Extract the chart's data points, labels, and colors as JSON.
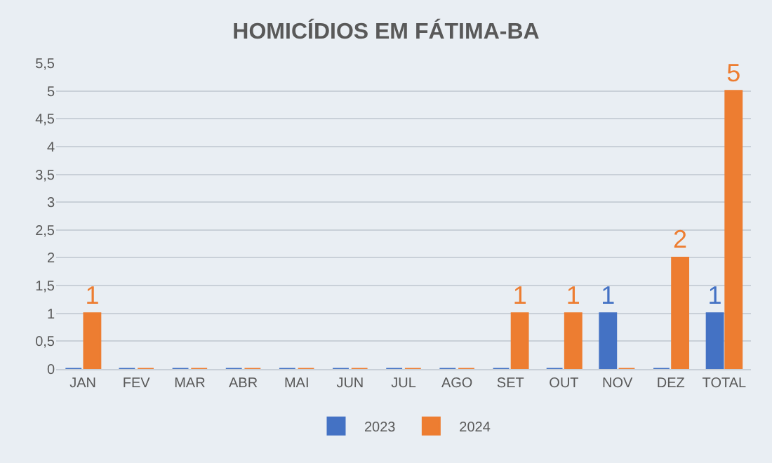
{
  "chart_data": {
    "type": "bar",
    "title": "HOMICÍDIOS EM FÁTIMA-BA",
    "categories": [
      "JAN",
      "FEV",
      "MAR",
      "ABR",
      "MAI",
      "JUN",
      "JUL",
      "AGO",
      "SET",
      "OUT",
      "NOV",
      "DEZ",
      "TOTAL"
    ],
    "series": [
      {
        "name": "2023",
        "color": "#4472c4",
        "values": [
          0,
          0,
          0,
          0,
          0,
          0,
          0,
          0,
          0,
          0,
          1,
          0,
          1
        ],
        "value_labels": [
          null,
          null,
          null,
          null,
          null,
          null,
          null,
          null,
          null,
          null,
          "1",
          null,
          "1"
        ]
      },
      {
        "name": "2024",
        "color": "#ed7d31",
        "values": [
          1,
          0,
          0,
          0,
          0,
          0,
          0,
          0,
          1,
          1,
          0,
          2,
          5
        ],
        "value_labels": [
          "1",
          null,
          null,
          null,
          null,
          null,
          null,
          null,
          "1",
          "1",
          null,
          "2",
          "5"
        ]
      }
    ],
    "ylim": [
      0,
      5.5
    ],
    "yticks": [
      0,
      {
        "value": 0.5,
        "label": "0,5"
      },
      1,
      {
        "value": 1.5,
        "label": "1,5"
      },
      2,
      {
        "value": 2.5,
        "label": "2,5"
      },
      3,
      {
        "value": 3.5,
        "label": "3,5"
      },
      4,
      {
        "value": 4.5,
        "label": "4,5"
      },
      5,
      {
        "value": 5.5,
        "label": "5,5"
      }
    ],
    "grid": "y",
    "legend": "bottom"
  }
}
